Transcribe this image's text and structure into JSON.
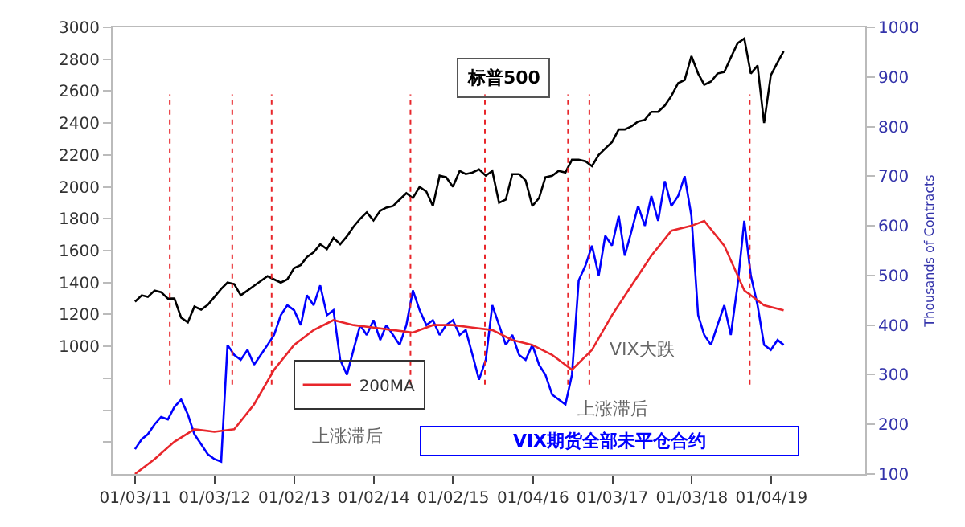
{
  "chart_data": {
    "type": "line",
    "ylabel": null,
    "y2label": "Thousands of Contracts",
    "xlim": [
      "2010-09-20",
      "2020-03-10"
    ],
    "xticks": [
      {
        "value": "2011-01-03",
        "label": "01/03/11"
      },
      {
        "value": "2012-01-03",
        "label": "01/03/12"
      },
      {
        "value": "2013-01-02",
        "label": "01/02/13"
      },
      {
        "value": "2014-01-02",
        "label": "01/02/14"
      },
      {
        "value": "2015-01-02",
        "label": "01/02/15"
      },
      {
        "value": "2016-01-04",
        "label": "01/04/16"
      },
      {
        "value": "2017-01-03",
        "label": "01/03/17"
      },
      {
        "value": "2018-01-03",
        "label": "01/03/18"
      },
      {
        "value": "2019-01-04",
        "label": "01/04/19"
      }
    ],
    "ylim": [
      200,
      3000
    ],
    "yticks": [
      {
        "value": 400,
        "label": null
      },
      {
        "value": 600,
        "label": null
      },
      {
        "value": 800,
        "label": null
      },
      1000,
      1200,
      1400,
      1600,
      1800,
      2000,
      2200,
      2400,
      2600,
      2800,
      3000
    ],
    "y2lim": [
      100,
      1000
    ],
    "y2ticks": [
      100,
      200,
      300,
      400,
      500,
      600,
      700,
      800,
      900,
      1000
    ],
    "grid": false,
    "legend": "left",
    "marker": "none",
    "series": [
      {
        "name": "标普500",
        "color": "#000000",
        "x": [
          "2011-01",
          "2011-02",
          "2011-03",
          "2011-04",
          "2011-05",
          "2011-06",
          "2011-07",
          "2011-08",
          "2011-09",
          "2011-10",
          "2011-11",
          "2011-12",
          "2012-01",
          "2012-02",
          "2012-03",
          "2012-04",
          "2012-05",
          "2012-06",
          "2012-07",
          "2012-08",
          "2012-09",
          "2012-10",
          "2012-11",
          "2012-12",
          "2013-01",
          "2013-02",
          "2013-03",
          "2013-04",
          "2013-05",
          "2013-06",
          "2013-07",
          "2013-08",
          "2013-09",
          "2013-10",
          "2013-11",
          "2013-12",
          "2014-01",
          "2014-02",
          "2014-03",
          "2014-04",
          "2014-05",
          "2014-06",
          "2014-07",
          "2014-08",
          "2014-09",
          "2014-10",
          "2014-11",
          "2014-12",
          "2015-01",
          "2015-02",
          "2015-03",
          "2015-04",
          "2015-05",
          "2015-06",
          "2015-07",
          "2015-08",
          "2015-09",
          "2015-10",
          "2015-11",
          "2015-12",
          "2016-01",
          "2016-02",
          "2016-03",
          "2016-04",
          "2016-05",
          "2016-06",
          "2016-07",
          "2016-08",
          "2016-09",
          "2016-10",
          "2016-11",
          "2016-12",
          "2017-01",
          "2017-02",
          "2017-03",
          "2017-04",
          "2017-05",
          "2017-06",
          "2017-07",
          "2017-08",
          "2017-09",
          "2017-10",
          "2017-11",
          "2017-12",
          "2018-01",
          "2018-02",
          "2018-03",
          "2018-04",
          "2018-05",
          "2018-06",
          "2018-07",
          "2018-08",
          "2018-09",
          "2018-10",
          "2018-11",
          "2018-12",
          "2019-01",
          "2019-02",
          "2019-03"
        ],
        "values": [
          1280,
          1320,
          1310,
          1350,
          1340,
          1300,
          1300,
          1180,
          1150,
          1250,
          1230,
          1260,
          1310,
          1360,
          1400,
          1390,
          1320,
          1350,
          1380,
          1410,
          1440,
          1420,
          1400,
          1420,
          1490,
          1510,
          1560,
          1590,
          1640,
          1610,
          1680,
          1640,
          1690,
          1750,
          1800,
          1840,
          1790,
          1850,
          1870,
          1880,
          1920,
          1960,
          1930,
          2000,
          1970,
          1880,
          2070,
          2060,
          2000,
          2100,
          2080,
          2090,
          2110,
          2070,
          2100,
          1900,
          1920,
          2080,
          2080,
          2040,
          1880,
          1930,
          2060,
          2070,
          2100,
          2090,
          2170,
          2170,
          2160,
          2130,
          2200,
          2240,
          2280,
          2360,
          2360,
          2380,
          2410,
          2420,
          2470,
          2470,
          2510,
          2570,
          2650,
          2670,
          2820,
          2710,
          2640,
          2660,
          2710,
          2720,
          2810,
          2900,
          2930,
          2710,
          2760,
          2400,
          2700,
          2780,
          2850
        ]
      },
      {
        "name": "VIX期货全部未平仓合约",
        "color": "#0000ff",
        "axis": "y2",
        "x": [
          "2011-01",
          "2011-02",
          "2011-03",
          "2011-04",
          "2011-05",
          "2011-06",
          "2011-07",
          "2011-08",
          "2011-09",
          "2011-10",
          "2011-11",
          "2011-12",
          "2012-01",
          "2012-02",
          "2012-03",
          "2012-04",
          "2012-05",
          "2012-06",
          "2012-07",
          "2012-08",
          "2012-09",
          "2012-10",
          "2012-11",
          "2012-12",
          "2013-01",
          "2013-02",
          "2013-03",
          "2013-04",
          "2013-05",
          "2013-06",
          "2013-07",
          "2013-08",
          "2013-09",
          "2013-10",
          "2013-11",
          "2013-12",
          "2014-01",
          "2014-02",
          "2014-03",
          "2014-04",
          "2014-05",
          "2014-06",
          "2014-07",
          "2014-08",
          "2014-09",
          "2014-10",
          "2014-11",
          "2014-12",
          "2015-01",
          "2015-02",
          "2015-03",
          "2015-04",
          "2015-05",
          "2015-06",
          "2015-07",
          "2015-08",
          "2015-09",
          "2015-10",
          "2015-11",
          "2015-12",
          "2016-01",
          "2016-02",
          "2016-03",
          "2016-04",
          "2016-05",
          "2016-06",
          "2016-07",
          "2016-08",
          "2016-09",
          "2016-10",
          "2016-11",
          "2016-12",
          "2017-01",
          "2017-02",
          "2017-03",
          "2017-04",
          "2017-05",
          "2017-06",
          "2017-07",
          "2017-08",
          "2017-09",
          "2017-10",
          "2017-11",
          "2017-12",
          "2018-01",
          "2018-02",
          "2018-03",
          "2018-04",
          "2018-05",
          "2018-06",
          "2018-07",
          "2018-08",
          "2018-09",
          "2018-10",
          "2018-11",
          "2018-12",
          "2019-01",
          "2019-02",
          "2019-03"
        ],
        "values": [
          150,
          170,
          180,
          200,
          215,
          210,
          235,
          250,
          220,
          180,
          160,
          140,
          130,
          125,
          360,
          340,
          330,
          350,
          320,
          340,
          360,
          380,
          420,
          440,
          430,
          400,
          460,
          440,
          480,
          420,
          430,
          330,
          300,
          350,
          400,
          380,
          410,
          370,
          400,
          380,
          360,
          400,
          470,
          430,
          400,
          410,
          380,
          400,
          410,
          380,
          390,
          340,
          290,
          330,
          440,
          400,
          360,
          380,
          340,
          330,
          360,
          320,
          300,
          260,
          250,
          240,
          300,
          490,
          520,
          560,
          500,
          580,
          560,
          620,
          540,
          590,
          640,
          600,
          660,
          610,
          690,
          640,
          660,
          700,
          620,
          420,
          380,
          360,
          400,
          440,
          380,
          480,
          610,
          500,
          440,
          360,
          350,
          370,
          360
        ]
      },
      {
        "name": "200MA",
        "color": "#e8262b",
        "axis": "y2",
        "x": [
          "2011-01",
          "2011-04",
          "2011-07",
          "2011-10",
          "2012-01",
          "2012-04",
          "2012-07",
          "2012-10",
          "2013-01",
          "2013-04",
          "2013-07",
          "2013-10",
          "2014-01",
          "2014-04",
          "2014-07",
          "2014-10",
          "2015-01",
          "2015-04",
          "2015-07",
          "2015-10",
          "2016-01",
          "2016-04",
          "2016-07",
          "2016-10",
          "2017-01",
          "2017-04",
          "2017-07",
          "2017-10",
          "2018-01",
          "2018-03",
          "2018-06",
          "2018-09",
          "2018-12",
          "2019-03"
        ],
        "values": [
          100,
          130,
          165,
          190,
          185,
          190,
          240,
          310,
          360,
          390,
          410,
          400,
          395,
          390,
          385,
          400,
          400,
          395,
          390,
          370,
          360,
          340,
          310,
          350,
          420,
          480,
          540,
          590,
          600,
          610,
          560,
          470,
          440,
          430
        ]
      }
    ],
    "ref_lines": [
      {
        "axis": "x",
        "value": "2011-06-10",
        "color": "#e8262b",
        "line_style": "dotted"
      },
      {
        "axis": "x",
        "value": "2012-03-23",
        "color": "#e8262b",
        "line_style": "dotted"
      },
      {
        "axis": "x",
        "value": "2012-09-20",
        "color": "#e8262b",
        "line_style": "dotted"
      },
      {
        "axis": "x",
        "value": "2014-06-20",
        "color": "#e8262b",
        "line_style": "dotted"
      },
      {
        "axis": "x",
        "value": "2015-05-28",
        "color": "#e8262b",
        "line_style": "dotted"
      },
      {
        "axis": "x",
        "value": "2016-06-13",
        "color": "#e8262b",
        "line_style": "dotted"
      },
      {
        "axis": "x",
        "value": "2016-09-19",
        "color": "#e8262b",
        "line_style": "dotted"
      },
      {
        "axis": "x",
        "value": "2018-09-26",
        "color": "#e8262b",
        "line_style": "dotted"
      }
    ],
    "annotations": [
      "上涨滞后",
      "上涨滞后",
      "VIX大跌"
    ]
  }
}
